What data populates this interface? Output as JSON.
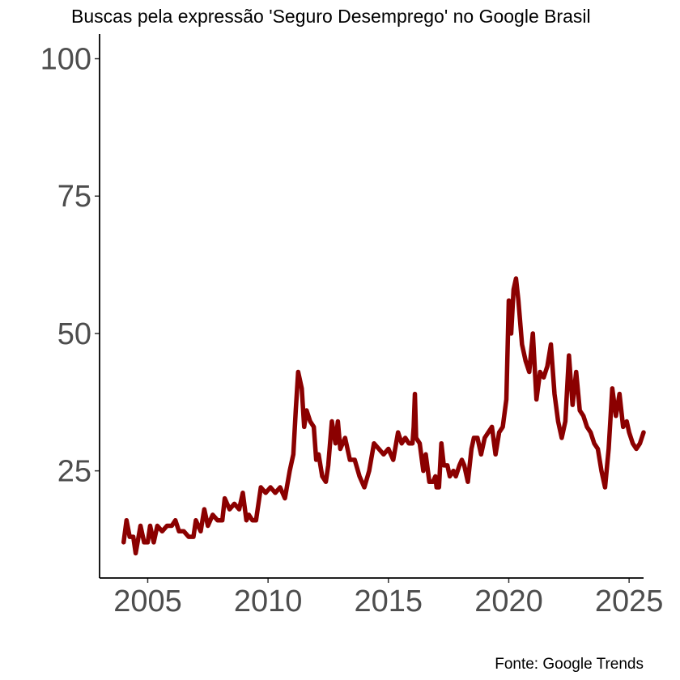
{
  "chart_data": {
    "type": "line",
    "title": "Buscas pela expressão 'Seguro Desemprego' no Google Brasil",
    "caption": "Fonte: Google Trends",
    "xlabel": "",
    "ylabel": "",
    "xlim": [
      2003.0,
      2025.6
    ],
    "ylim": [
      5.5,
      104.5
    ],
    "x_ticks": [
      2005,
      2010,
      2015,
      2020,
      2025
    ],
    "y_ticks": [
      25,
      50,
      75,
      100
    ],
    "grid": false,
    "legend": "none",
    "line_color": "#8b0000",
    "series": [
      {
        "points": [
          [
            2004.0,
            12
          ],
          [
            2004.12,
            16
          ],
          [
            2004.25,
            13
          ],
          [
            2004.4,
            13
          ],
          [
            2004.5,
            10
          ],
          [
            2004.7,
            15
          ],
          [
            2004.85,
            12
          ],
          [
            2005.0,
            12
          ],
          [
            2005.1,
            15
          ],
          [
            2005.25,
            12
          ],
          [
            2005.4,
            15
          ],
          [
            2005.6,
            14
          ],
          [
            2005.8,
            15
          ],
          [
            2006.0,
            15
          ],
          [
            2006.15,
            16
          ],
          [
            2006.3,
            14
          ],
          [
            2006.5,
            14
          ],
          [
            2006.7,
            13
          ],
          [
            2006.9,
            13
          ],
          [
            2007.0,
            16
          ],
          [
            2007.2,
            14
          ],
          [
            2007.35,
            18
          ],
          [
            2007.5,
            15
          ],
          [
            2007.7,
            17
          ],
          [
            2007.9,
            16
          ],
          [
            2008.1,
            16
          ],
          [
            2008.2,
            20
          ],
          [
            2008.4,
            18
          ],
          [
            2008.6,
            19
          ],
          [
            2008.8,
            18
          ],
          [
            2008.95,
            21
          ],
          [
            2009.1,
            16
          ],
          [
            2009.2,
            17
          ],
          [
            2009.35,
            16
          ],
          [
            2009.5,
            16
          ],
          [
            2009.7,
            22
          ],
          [
            2009.9,
            21
          ],
          [
            2010.1,
            22
          ],
          [
            2010.3,
            21
          ],
          [
            2010.5,
            22
          ],
          [
            2010.7,
            20
          ],
          [
            2010.9,
            25
          ],
          [
            2011.05,
            28
          ],
          [
            2011.15,
            36
          ],
          [
            2011.25,
            43
          ],
          [
            2011.4,
            40
          ],
          [
            2011.5,
            33
          ],
          [
            2011.6,
            36
          ],
          [
            2011.75,
            34
          ],
          [
            2011.9,
            33
          ],
          [
            2012.0,
            27
          ],
          [
            2012.1,
            28
          ],
          [
            2012.25,
            24
          ],
          [
            2012.4,
            23
          ],
          [
            2012.5,
            26
          ],
          [
            2012.65,
            34
          ],
          [
            2012.8,
            30
          ],
          [
            2012.9,
            34
          ],
          [
            2013.0,
            29
          ],
          [
            2013.2,
            31
          ],
          [
            2013.4,
            27
          ],
          [
            2013.6,
            27
          ],
          [
            2013.8,
            24
          ],
          [
            2014.0,
            22
          ],
          [
            2014.2,
            25
          ],
          [
            2014.4,
            30
          ],
          [
            2014.6,
            29
          ],
          [
            2014.8,
            28
          ],
          [
            2015.0,
            29
          ],
          [
            2015.2,
            27
          ],
          [
            2015.4,
            32
          ],
          [
            2015.55,
            30
          ],
          [
            2015.7,
            31
          ],
          [
            2015.85,
            30
          ],
          [
            2016.0,
            30
          ],
          [
            2016.05,
            33
          ],
          [
            2016.1,
            39
          ],
          [
            2016.15,
            31
          ],
          [
            2016.3,
            30
          ],
          [
            2016.45,
            25
          ],
          [
            2016.55,
            28
          ],
          [
            2016.7,
            23
          ],
          [
            2016.85,
            23
          ],
          [
            2016.95,
            24
          ],
          [
            2017.0,
            22
          ],
          [
            2017.1,
            22
          ],
          [
            2017.2,
            30
          ],
          [
            2017.3,
            26
          ],
          [
            2017.45,
            26
          ],
          [
            2017.55,
            24
          ],
          [
            2017.7,
            25
          ],
          [
            2017.8,
            24
          ],
          [
            2017.95,
            26
          ],
          [
            2018.05,
            27
          ],
          [
            2018.15,
            26
          ],
          [
            2018.3,
            23
          ],
          [
            2018.45,
            29
          ],
          [
            2018.55,
            31
          ],
          [
            2018.7,
            31
          ],
          [
            2018.85,
            28
          ],
          [
            2019.0,
            31
          ],
          [
            2019.15,
            32
          ],
          [
            2019.3,
            33
          ],
          [
            2019.45,
            28
          ],
          [
            2019.6,
            32
          ],
          [
            2019.75,
            33
          ],
          [
            2019.9,
            38
          ],
          [
            2020.0,
            56
          ],
          [
            2020.1,
            50
          ],
          [
            2020.2,
            58
          ],
          [
            2020.3,
            60
          ],
          [
            2020.4,
            56
          ],
          [
            2020.55,
            48
          ],
          [
            2020.7,
            45
          ],
          [
            2020.85,
            43
          ],
          [
            2021.0,
            50
          ],
          [
            2021.15,
            38
          ],
          [
            2021.3,
            43
          ],
          [
            2021.45,
            42
          ],
          [
            2021.6,
            44
          ],
          [
            2021.75,
            48
          ],
          [
            2021.9,
            39
          ],
          [
            2022.05,
            34
          ],
          [
            2022.2,
            31
          ],
          [
            2022.35,
            34
          ],
          [
            2022.5,
            46
          ],
          [
            2022.65,
            37
          ],
          [
            2022.8,
            43
          ],
          [
            2022.95,
            36
          ],
          [
            2023.1,
            35
          ],
          [
            2023.25,
            33
          ],
          [
            2023.4,
            32
          ],
          [
            2023.55,
            30
          ],
          [
            2023.7,
            29
          ],
          [
            2023.85,
            25
          ],
          [
            2024.0,
            22
          ],
          [
            2024.15,
            29
          ],
          [
            2024.3,
            40
          ],
          [
            2024.45,
            35
          ],
          [
            2024.6,
            39
          ],
          [
            2024.75,
            33
          ],
          [
            2024.9,
            34
          ],
          [
            2025.0,
            32
          ],
          [
            2025.15,
            30
          ],
          [
            2025.3,
            29
          ],
          [
            2025.45,
            30
          ],
          [
            2025.6,
            32
          ]
        ]
      }
    ]
  }
}
